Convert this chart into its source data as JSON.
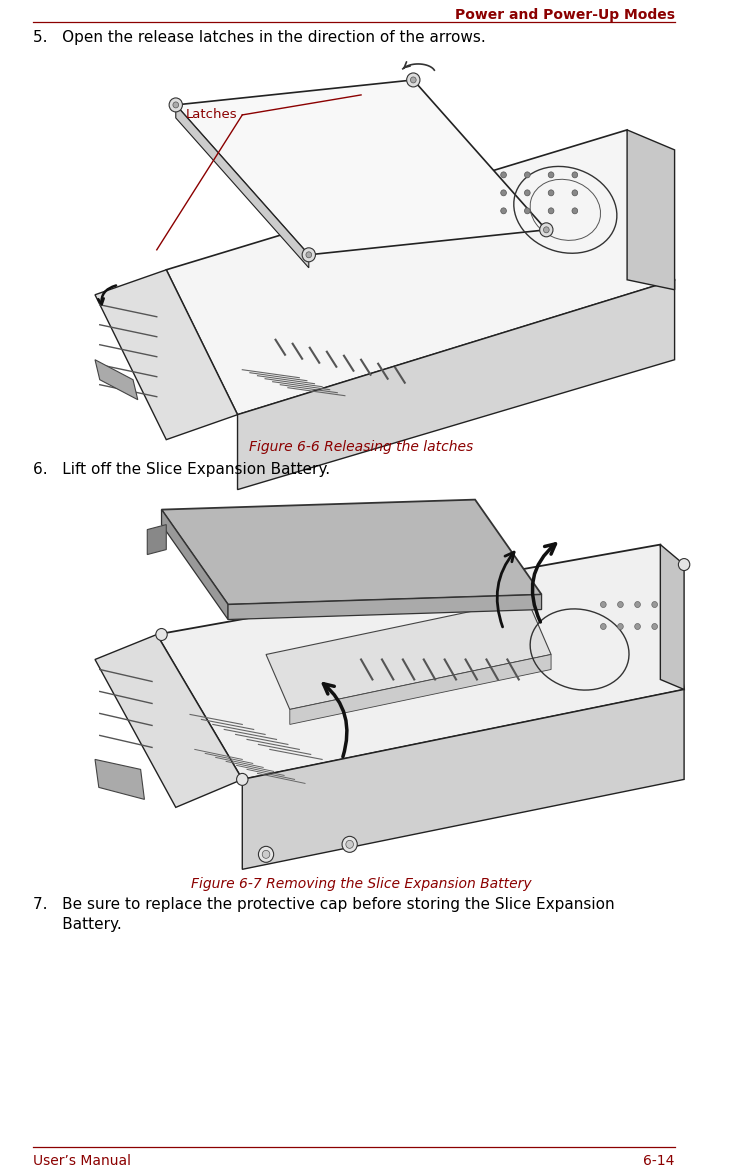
{
  "header_text": "Power and Power-Up Modes",
  "header_color": "#8B0000",
  "header_line_color": "#8B0000",
  "footer_left": "User’s Manual",
  "footer_right": "6-14",
  "footer_color": "#8B0000",
  "footer_line_color": "#8B0000",
  "bg_color": "#ffffff",
  "step5_text": "5.   Open the release latches in the direction of the arrows.",
  "step6_text": "6.   Lift off the Slice Expansion Battery.",
  "step7_line1": "7.   Be sure to replace the protective cap before storing the Slice Expansion",
  "step7_line2": "      Battery.",
  "fig6_caption": "Figure 6-6 Releasing the latches",
  "fig7_caption": "Figure 6-7 Removing the Slice Expansion Battery",
  "caption_color": "#8B0000",
  "text_color": "#000000",
  "label_latches": "Latches",
  "label_color": "#8B0000",
  "step_fontsize": 11.0,
  "caption_fontsize": 10.0,
  "footer_fontsize": 10.0,
  "header_fontsize": 10.0,
  "label_fontsize": 9.5
}
